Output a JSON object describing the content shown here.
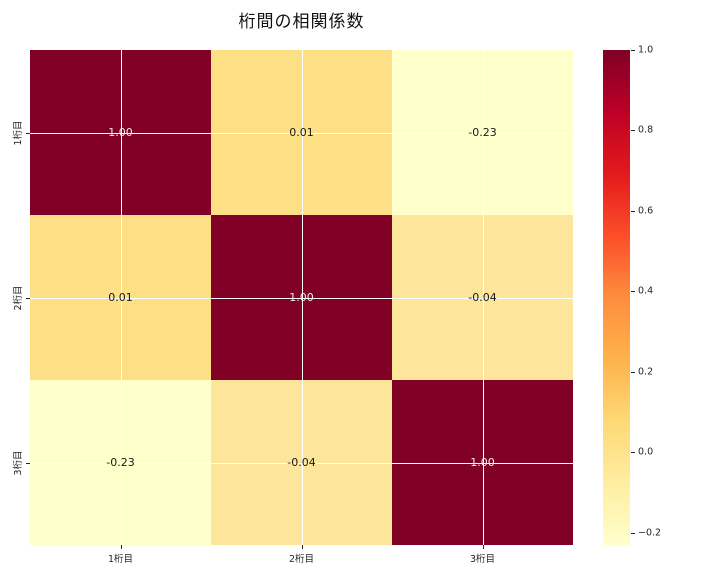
{
  "chart_data": {
    "type": "heatmap",
    "title": "桁間の相関係数",
    "x_categories": [
      "1桁目",
      "2桁目",
      "3桁目"
    ],
    "y_categories": [
      "1桁目",
      "2桁目",
      "3桁目"
    ],
    "values": [
      [
        1.0,
        0.01,
        -0.23
      ],
      [
        0.01,
        1.0,
        -0.04
      ],
      [
        -0.23,
        -0.04,
        1.0
      ]
    ],
    "cell_labels": [
      [
        "1.00",
        "0.01",
        "-0.23"
      ],
      [
        "0.01",
        "1.00",
        "-0.04"
      ],
      [
        "-0.23",
        "-0.04",
        "1.00"
      ]
    ],
    "xlabel": "",
    "ylabel": "",
    "colormap": "YlOrRd",
    "grid": true,
    "legend_position": "none",
    "colorbar": {
      "position": "right",
      "tick_labels": [
        "1.0",
        "0.8",
        "0.6",
        "0.4",
        "0.2",
        "0.0",
        "−0.2"
      ],
      "tick_values": [
        1.0,
        0.8,
        0.6,
        0.4,
        0.2,
        0.0,
        -0.2
      ],
      "vmin": -0.23,
      "vmax": 1.0
    }
  },
  "colors": {
    "background": "#ffffff",
    "cell_colors": [
      [
        "#800026",
        "#FDE086",
        "#FFFFCC"
      ],
      [
        "#FDE086",
        "#800026",
        "#FDE69C"
      ],
      [
        "#FFFFCC",
        "#FDE69C",
        "#800026"
      ]
    ],
    "value_text_on_dark": "#EDEDED",
    "value_text_on_light": "#1A1A1A",
    "gridline": "#FFFFFF",
    "tick_color": "#262626",
    "title_color": "#111111",
    "colorbar_stops": [
      "#800026",
      "#BD0026",
      "#E31A1C",
      "#FC4E2A",
      "#FD8D3C",
      "#FEB24C",
      "#FED976",
      "#FFEDA0",
      "#FFFFCC"
    ]
  }
}
